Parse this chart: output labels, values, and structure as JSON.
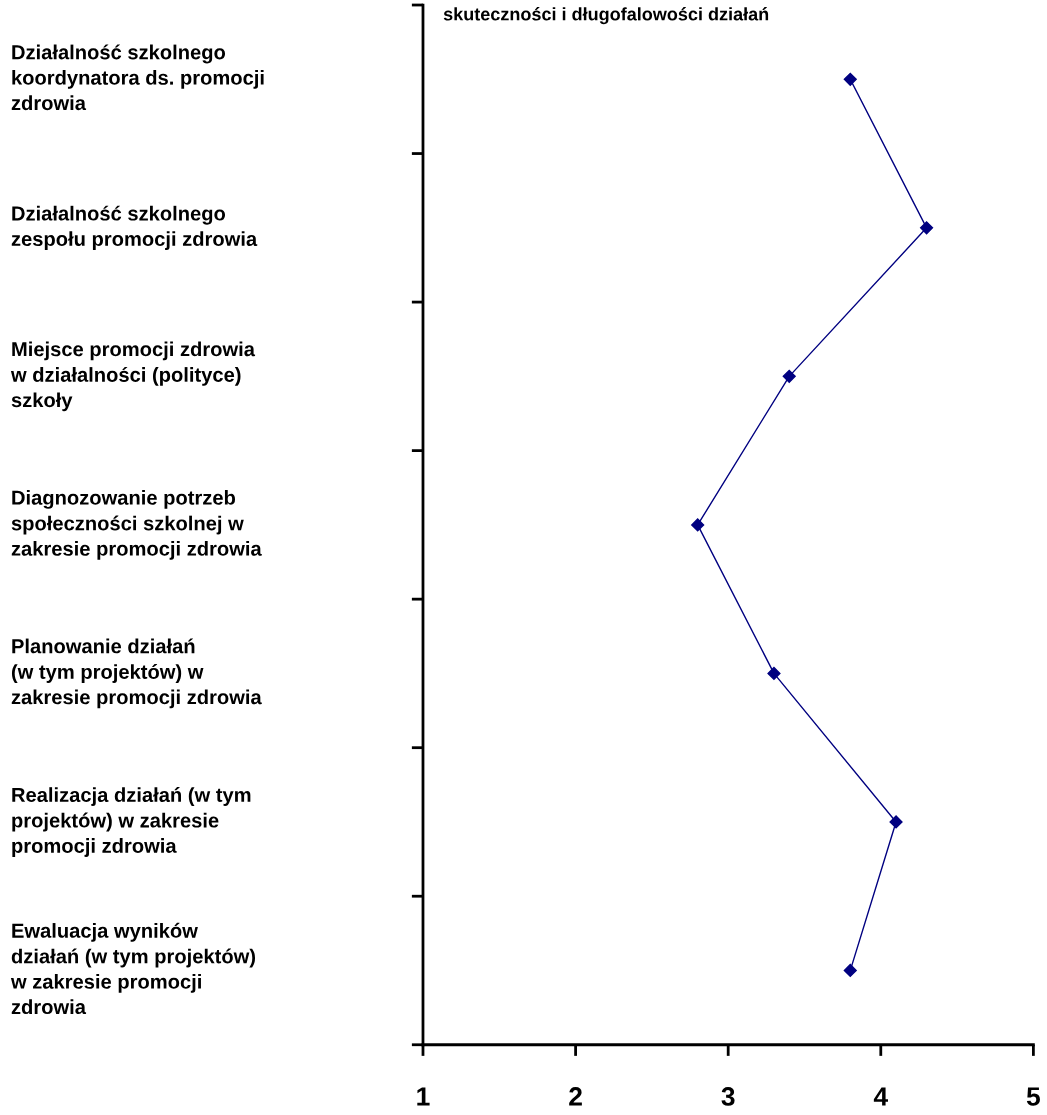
{
  "chart_data": {
    "type": "line",
    "orientation": "horizontal",
    "title": "skuteczności i długofalowości działań",
    "categories": [
      "Działalność szkolnego\nkoordynatora ds. promocji\nzdrowia",
      "Działalność szkolnego\nzespołu promocji zdrowia",
      "Miejsce promocji zdrowia\nw działalności (polityce)\nszkoły",
      "Diagnozowanie potrzeb\nspołeczności szkolnej w\nzakresie promocji zdrowia",
      "Planowanie działań\n(w tym projektów) w\nzakresie promocji zdrowia",
      "Realizacja działań (w tym\nprojektów) w zakresie\npromocji zdrowia",
      "Ewaluacja wyników\ndziałań (w tym projektów)\nw zakresie promocji\nzdrowia"
    ],
    "series": [
      {
        "color": "#000080",
        "values": [
          3.8,
          4.3,
          3.4,
          2.8,
          3.3,
          4.1,
          3.8
        ]
      }
    ],
    "xlim": [
      1,
      5
    ],
    "xticks": [
      1,
      2,
      3,
      4,
      5
    ],
    "grid": false,
    "marker": "diamond",
    "line_style": "solid"
  }
}
